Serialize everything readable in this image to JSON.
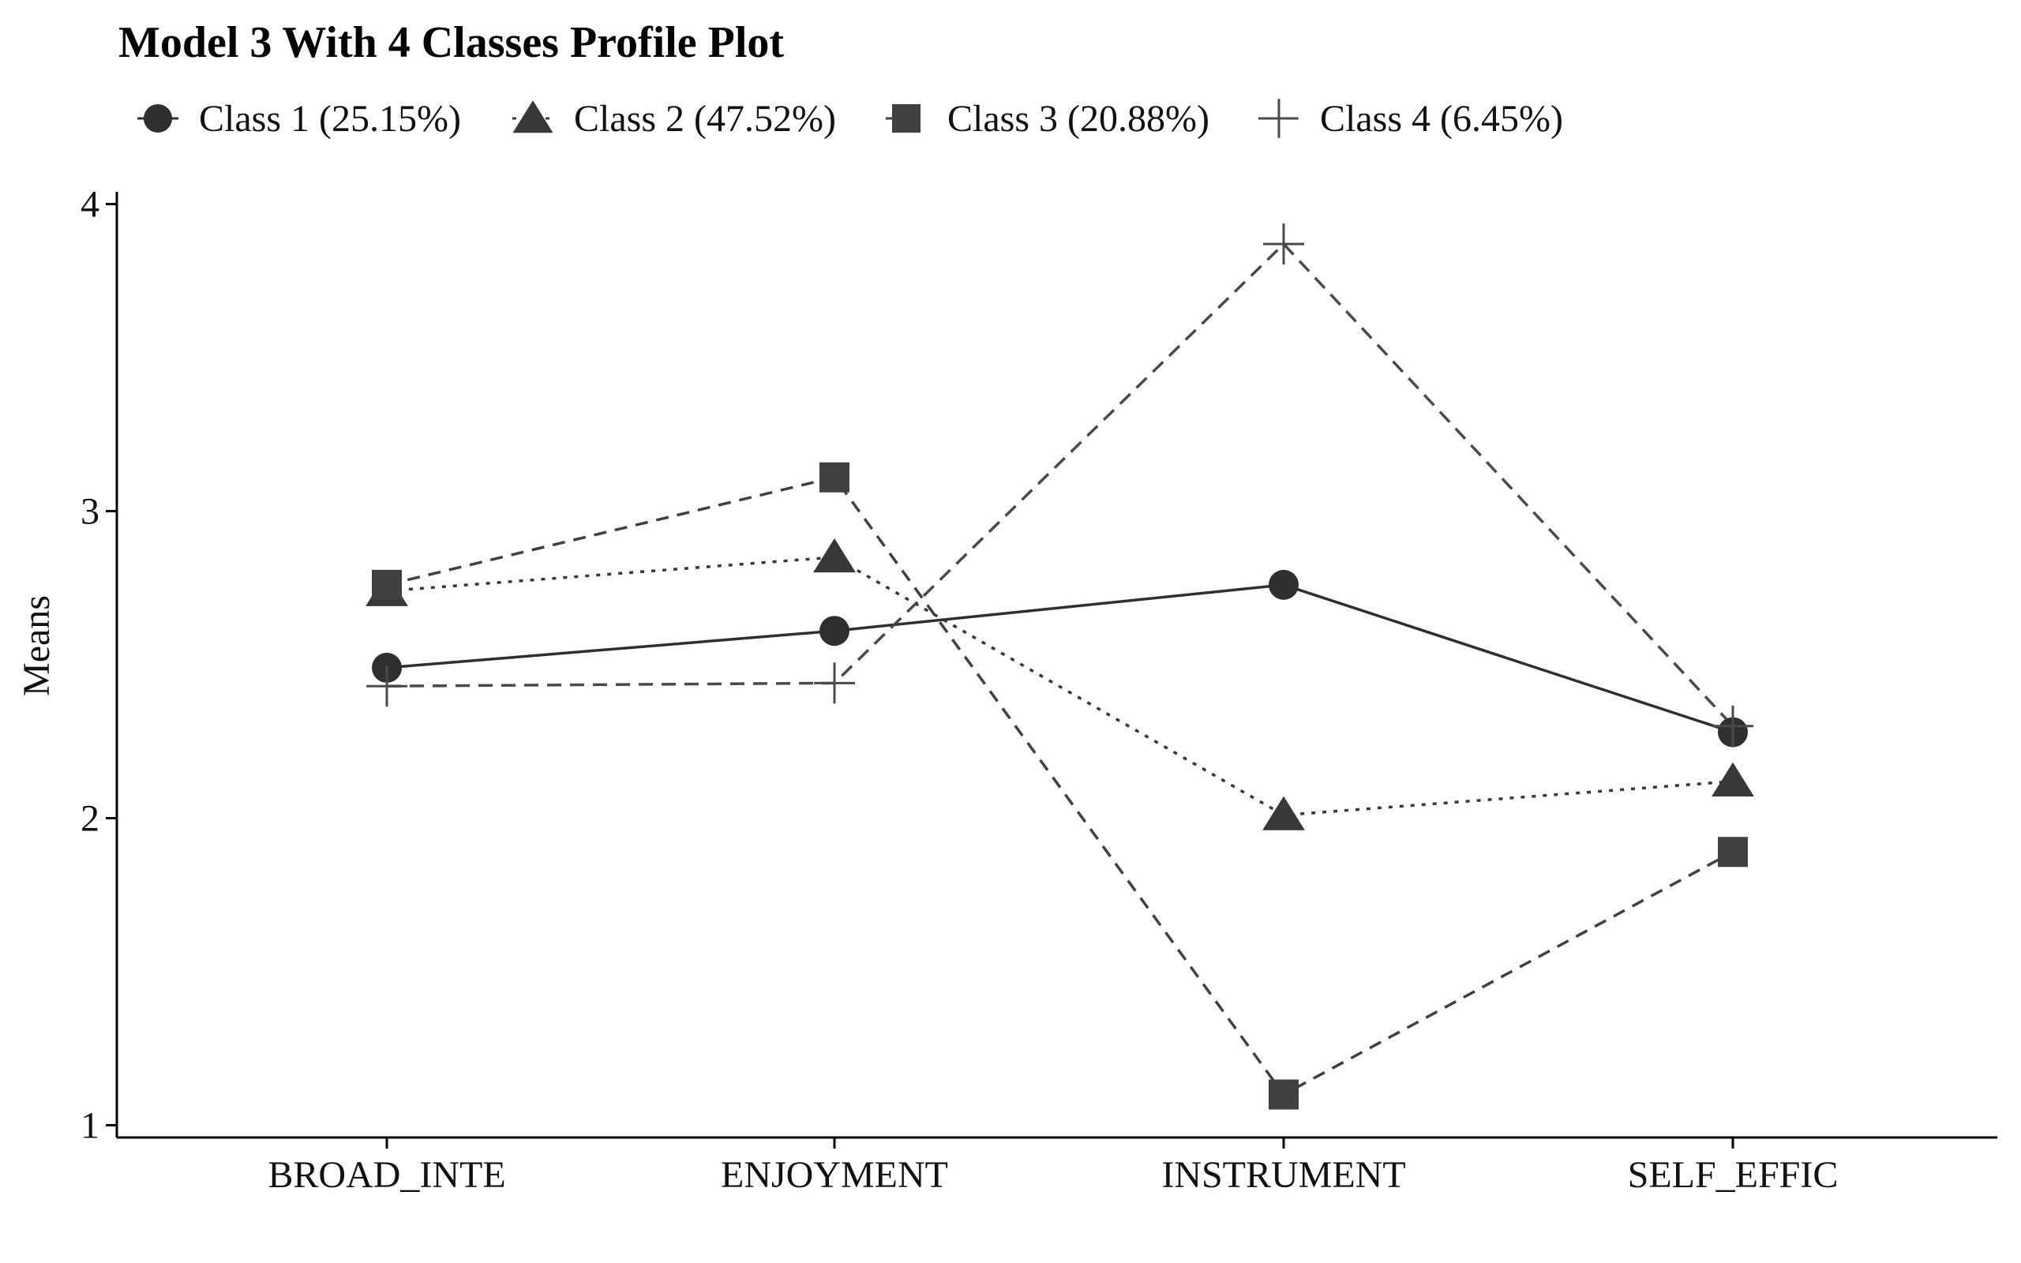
{
  "chart_data": {
    "type": "line",
    "title": "Model 3 With 4 Classes Profile Plot",
    "xlabel": "",
    "ylabel": "Means",
    "categories": [
      "BROAD_INTE",
      "ENJOYMENT",
      "INSTRUMENT",
      "SELF_EFFIC"
    ],
    "ylim": [
      0.96,
      4.04
    ],
    "yticks": [
      1,
      2,
      3,
      4
    ],
    "grid": false,
    "legend_position": "top",
    "series": [
      {
        "name": "Class 1 (25.15%)",
        "values": [
          2.49,
          2.61,
          2.76,
          2.28
        ],
        "marker": "circle",
        "line_style": "solid",
        "color": "#2f2f2f"
      },
      {
        "name": "Class 2 (47.52%)",
        "values": [
          2.74,
          2.85,
          2.01,
          2.12
        ],
        "marker": "triangle",
        "line_style": "dotted",
        "color": "#383838"
      },
      {
        "name": "Class 3 (20.88%)",
        "values": [
          2.76,
          3.11,
          1.1,
          1.89
        ],
        "marker": "square",
        "line_style": "dashed",
        "color": "#404040"
      },
      {
        "name": "Class 4 (6.45%)",
        "values": [
          2.43,
          2.44,
          3.87,
          2.3
        ],
        "marker": "cross",
        "line_style": "longdash",
        "color": "#4a4a4a"
      }
    ]
  }
}
